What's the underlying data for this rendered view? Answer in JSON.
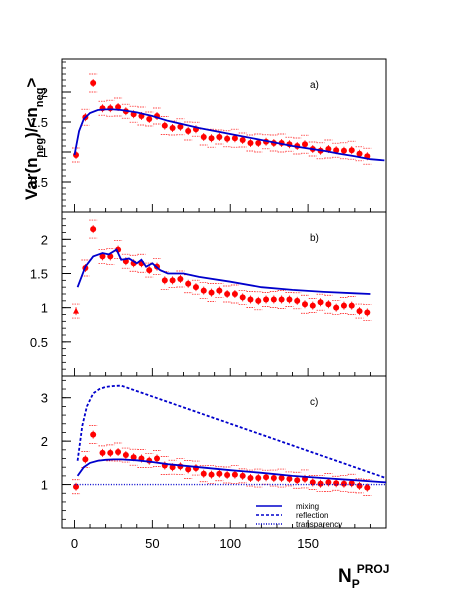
{
  "figure": {
    "ylabel_main": "Var(n",
    "ylabel_sub1": "neg",
    "ylabel_mid": ")/<n",
    "ylabel_sub2": "neg",
    "ylabel_end": ">",
    "xlabel_main": "N",
    "xlabel_sub": "P",
    "xlabel_sup": "PROJ"
  },
  "colors": {
    "data": "#ff0000",
    "model": "#0000cc",
    "syst": "#ff0000",
    "axis": "#000000"
  },
  "chart_data": [
    {
      "type": "scatter",
      "panel_label": "a)",
      "x_ticks": [
        0,
        50,
        100,
        150
      ],
      "y_ticks": [
        0.5,
        1,
        1.5,
        2
      ],
      "xlim": [
        -8,
        200
      ],
      "ylim": [
        0,
        2.55
      ],
      "series": [
        {
          "kind": "data",
          "x": [
            1,
            7,
            12,
            18,
            23,
            28,
            33,
            38,
            43,
            48,
            53,
            58,
            63,
            68,
            73,
            78,
            83,
            88,
            93,
            98,
            103,
            108,
            113,
            118,
            123,
            128,
            133,
            138,
            143,
            148,
            153,
            158,
            163,
            168,
            173,
            178,
            183,
            188
          ],
          "y": [
            0.95,
            1.58,
            2.15,
            1.73,
            1.73,
            1.75,
            1.68,
            1.63,
            1.6,
            1.55,
            1.6,
            1.44,
            1.4,
            1.42,
            1.35,
            1.38,
            1.25,
            1.23,
            1.25,
            1.22,
            1.23,
            1.2,
            1.15,
            1.15,
            1.17,
            1.15,
            1.15,
            1.13,
            1.1,
            1.13,
            1.05,
            1.02,
            1.05,
            1.03,
            1.02,
            1.03,
            0.97,
            0.93
          ],
          "marker": [
            "circle",
            "circle",
            "circle",
            "circle",
            "circle",
            "circle",
            "circle",
            "circle",
            "circle",
            "circle",
            "circle",
            "circle",
            "circle",
            "circle",
            "circle",
            "circle",
            "circle",
            "circle",
            "circle",
            "circle",
            "circle",
            "circle",
            "circle",
            "circle",
            "circle",
            "circle",
            "circle",
            "circle",
            "circle",
            "circle",
            "circle",
            "circle",
            "circle",
            "circle",
            "circle",
            "circle",
            "circle",
            "circle"
          ]
        },
        {
          "kind": "model",
          "style": "solid",
          "x": [
            0,
            3,
            6,
            10,
            15,
            20,
            25,
            30,
            40,
            50,
            60,
            80,
            100,
            120,
            140,
            160,
            170,
            180,
            190,
            199
          ],
          "y": [
            0.95,
            1.35,
            1.55,
            1.65,
            1.7,
            1.71,
            1.71,
            1.7,
            1.66,
            1.6,
            1.52,
            1.4,
            1.3,
            1.2,
            1.1,
            1.02,
            0.97,
            0.93,
            0.88,
            0.86
          ]
        }
      ]
    },
    {
      "type": "scatter",
      "panel_label": "b)",
      "x_ticks": [
        0,
        50,
        100,
        150
      ],
      "y_ticks": [
        0.5,
        1,
        1.5,
        2
      ],
      "xlim": [
        -8,
        200
      ],
      "ylim": [
        0,
        2.4
      ],
      "series": [
        {
          "kind": "data",
          "x": [
            1,
            7,
            12,
            18,
            23,
            28,
            33,
            38,
            43,
            48,
            53,
            58,
            63,
            68,
            73,
            78,
            83,
            88,
            93,
            98,
            103,
            108,
            113,
            118,
            123,
            128,
            133,
            138,
            143,
            148,
            153,
            158,
            163,
            168,
            173,
            178,
            183,
            188
          ],
          "y": [
            0.95,
            1.58,
            2.15,
            1.75,
            1.75,
            1.85,
            1.68,
            1.65,
            1.65,
            1.55,
            1.6,
            1.4,
            1.4,
            1.42,
            1.35,
            1.3,
            1.25,
            1.22,
            1.25,
            1.2,
            1.2,
            1.15,
            1.12,
            1.1,
            1.12,
            1.12,
            1.12,
            1.12,
            1.1,
            1.05,
            1.03,
            1.08,
            1.05,
            1.0,
            1.03,
            1.03,
            0.95,
            0.93
          ],
          "marker": [
            "triangle",
            "circle",
            "circle",
            "circle",
            "circle",
            "circle",
            "circle",
            "circle",
            "circle",
            "circle",
            "circle",
            "circle",
            "circle",
            "circle",
            "circle",
            "circle",
            "circle",
            "circle",
            "circle",
            "circle",
            "circle",
            "circle",
            "circle",
            "circle",
            "circle",
            "circle",
            "circle",
            "circle",
            "circle",
            "circle",
            "circle",
            "circle",
            "circle",
            "circle",
            "circle",
            "circle",
            "circle",
            "circle"
          ]
        },
        {
          "kind": "model",
          "style": "solid",
          "x": [
            2,
            7,
            12,
            18,
            22,
            27,
            30,
            35,
            40,
            43,
            46,
            50,
            55,
            60,
            70,
            80,
            100,
            120,
            140,
            160,
            180,
            190
          ],
          "y": [
            1.3,
            1.6,
            1.75,
            1.8,
            1.78,
            1.85,
            1.7,
            1.72,
            1.65,
            1.7,
            1.6,
            1.65,
            1.55,
            1.5,
            1.5,
            1.45,
            1.38,
            1.3,
            1.26,
            1.23,
            1.21,
            1.2
          ]
        }
      ]
    },
    {
      "type": "scatter",
      "panel_label": "c)",
      "x_ticks": [
        0,
        50,
        100,
        150
      ],
      "y_ticks": [
        1,
        2,
        3
      ],
      "xlim": [
        -8,
        200
      ],
      "ylim": [
        0,
        3.5
      ],
      "series": [
        {
          "kind": "data",
          "x": [
            1,
            7,
            12,
            18,
            23,
            28,
            33,
            38,
            43,
            48,
            53,
            58,
            63,
            68,
            73,
            78,
            83,
            88,
            93,
            98,
            103,
            108,
            113,
            118,
            123,
            128,
            133,
            138,
            143,
            148,
            153,
            158,
            163,
            168,
            173,
            178,
            183,
            188
          ],
          "y": [
            0.95,
            1.58,
            2.15,
            1.73,
            1.73,
            1.75,
            1.68,
            1.63,
            1.6,
            1.55,
            1.6,
            1.44,
            1.4,
            1.42,
            1.35,
            1.38,
            1.25,
            1.23,
            1.25,
            1.22,
            1.23,
            1.2,
            1.15,
            1.15,
            1.17,
            1.15,
            1.15,
            1.13,
            1.1,
            1.13,
            1.05,
            1.02,
            1.05,
            1.03,
            1.02,
            1.03,
            0.97,
            0.93
          ],
          "marker": [
            "circle",
            "circle",
            "circle",
            "circle",
            "circle",
            "circle",
            "circle",
            "circle",
            "circle",
            "circle",
            "circle",
            "circle",
            "circle",
            "circle",
            "circle",
            "circle",
            "circle",
            "circle",
            "circle",
            "circle",
            "circle",
            "circle",
            "circle",
            "circle",
            "circle",
            "circle",
            "circle",
            "circle",
            "circle",
            "circle",
            "circle",
            "circle",
            "circle",
            "circle",
            "circle",
            "circle",
            "circle",
            "circle"
          ]
        },
        {
          "kind": "model",
          "name": "mixing",
          "style": "solid",
          "x": [
            2,
            6,
            10,
            15,
            20,
            25,
            30,
            40,
            50,
            60,
            80,
            100,
            120,
            140,
            160,
            180,
            200
          ],
          "y": [
            1.2,
            1.4,
            1.5,
            1.55,
            1.57,
            1.58,
            1.58,
            1.56,
            1.52,
            1.47,
            1.4,
            1.33,
            1.27,
            1.2,
            1.15,
            1.1,
            1.05
          ]
        },
        {
          "kind": "model",
          "name": "reflection",
          "style": "dashed",
          "x": [
            2,
            5,
            8,
            12,
            16,
            20,
            25,
            30,
            200
          ],
          "y": [
            1.55,
            2.35,
            2.8,
            3.1,
            3.2,
            3.25,
            3.27,
            3.28,
            1.15
          ]
        },
        {
          "kind": "model",
          "name": "transparency",
          "style": "dotted",
          "x": [
            0,
            200
          ],
          "y": [
            1.0,
            1.0
          ]
        }
      ]
    }
  ]
}
